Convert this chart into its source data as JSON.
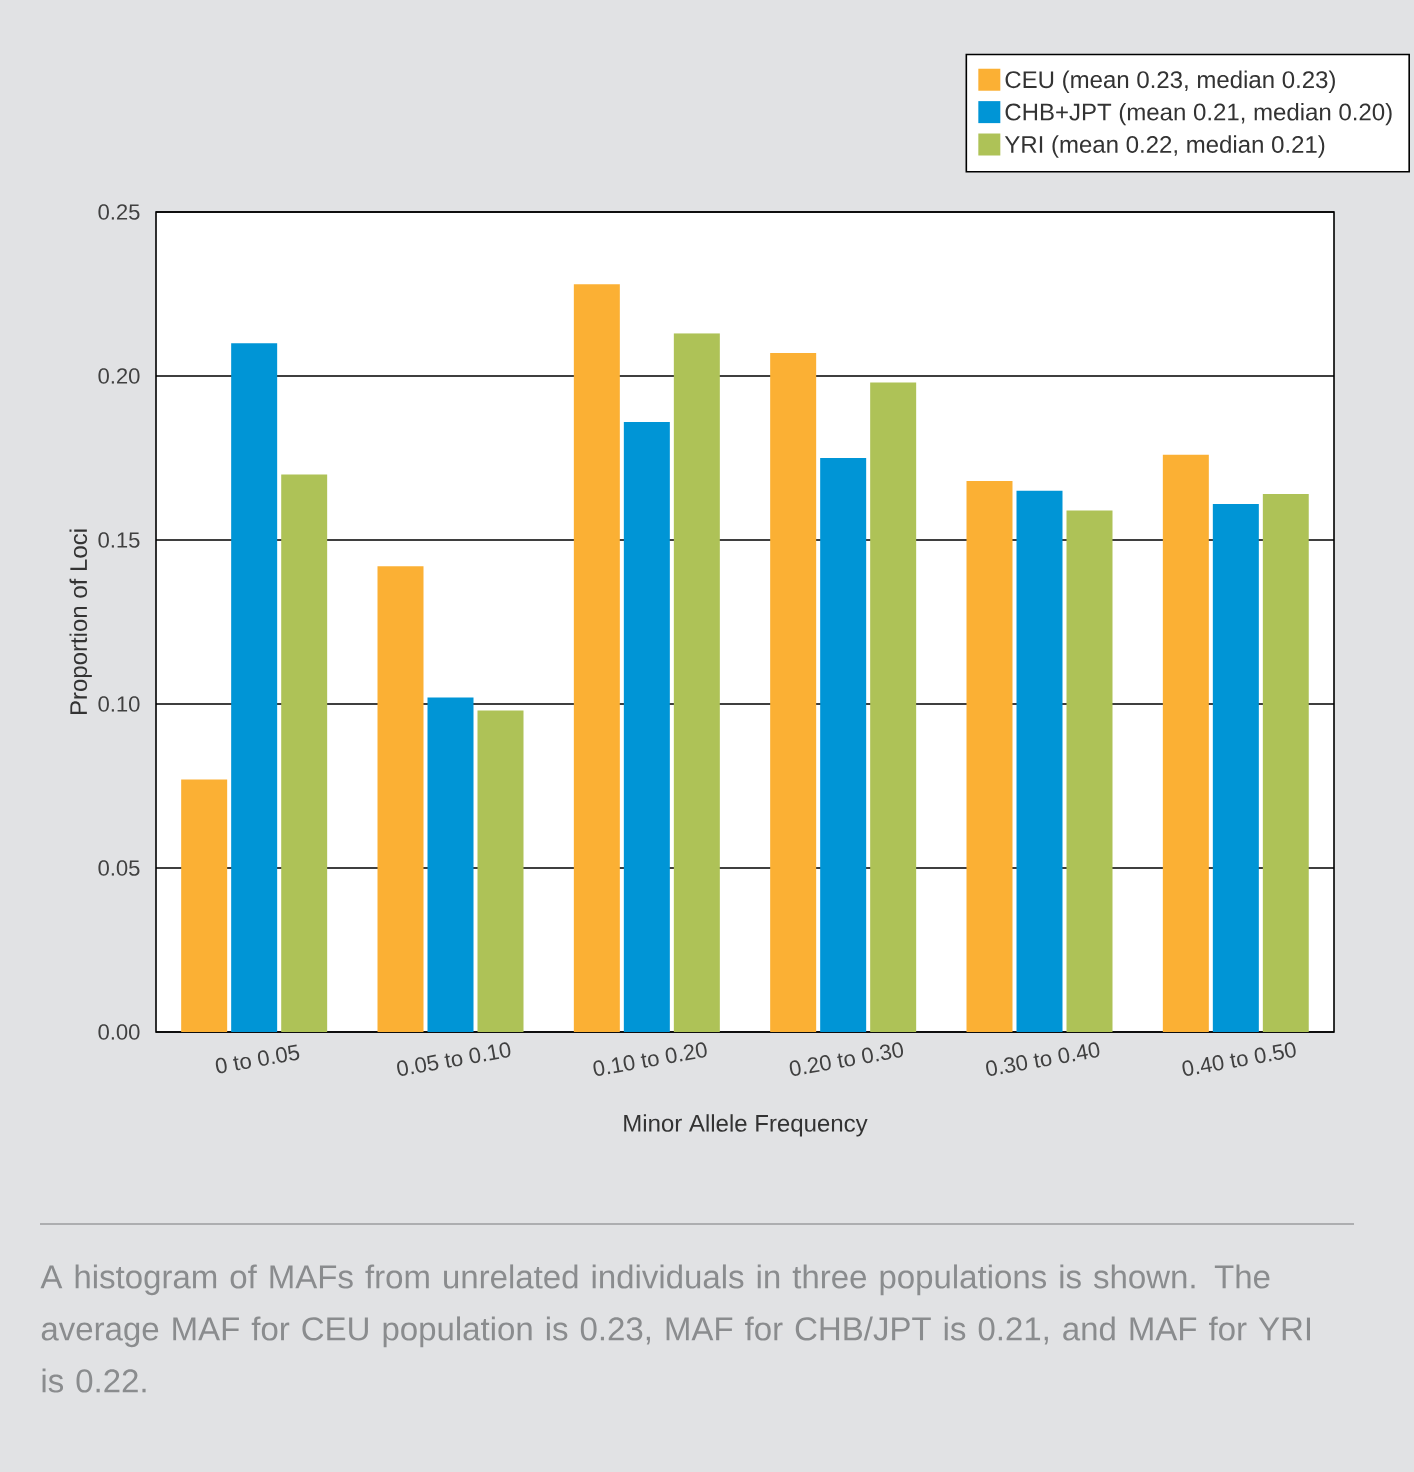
{
  "chart_data": {
    "type": "bar",
    "xlabel": "Minor Allele Frequency",
    "ylabel": "Proportion of Loci",
    "categories": [
      "0 to 0.05",
      "0.05 to 0.10",
      "0.10 to 0.20",
      "0.20 to 0.30",
      "0.30 to 0.40",
      "0.40 to 0.50"
    ],
    "series": [
      {
        "name": "CEU (mean 0.23, median 0.23)",
        "color": "#fbb034",
        "values": [
          0.077,
          0.142,
          0.228,
          0.207,
          0.168,
          0.176
        ]
      },
      {
        "name": "CHB+JPT (mean 0.21, median 0.20)",
        "color": "#0095d6",
        "values": [
          0.21,
          0.102,
          0.186,
          0.175,
          0.165,
          0.161
        ]
      },
      {
        "name": "YRI (mean 0.22, median 0.21)",
        "color": "#aec257",
        "values": [
          0.17,
          0.098,
          0.213,
          0.198,
          0.159,
          0.164
        ]
      }
    ],
    "ylim": [
      0,
      0.25
    ],
    "yticks": [
      {
        "value": 0,
        "label": "0.00"
      },
      {
        "value": 0.05,
        "label": "0.05"
      },
      {
        "value": 0.1,
        "label": "0.10"
      },
      {
        "value": 0.15,
        "label": "0.15"
      },
      {
        "value": 0.2,
        "label": "0.20"
      },
      {
        "value": 0.25,
        "label": "0.25"
      }
    ],
    "grid": "y",
    "legend": "top right",
    "annotations": [
      "A histogram of MAFs from unrelated individuals in three populations is shown. The average MAF for CEU population is 0.23, MAF for CHB/JPT is 0.21, and MAF for YRI is 0.22."
    ]
  }
}
